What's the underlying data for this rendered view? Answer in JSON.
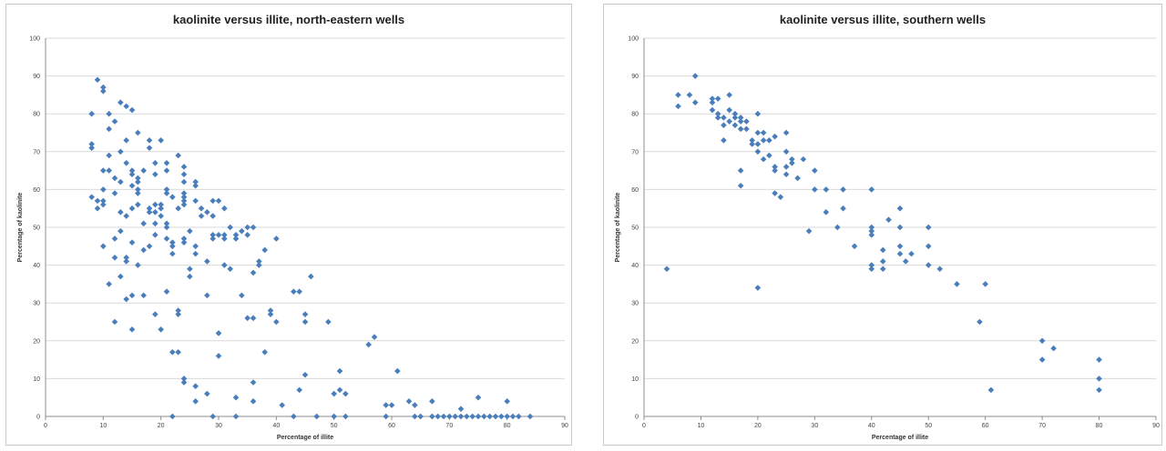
{
  "colors": {
    "marker": "#4a7ebb",
    "grid": "#d9d9d9",
    "axis": "#8c8c8c"
  },
  "chart_data": [
    {
      "type": "scatter",
      "title": "kaolinite versus illite, north-eastern wells",
      "xlabel": "Percentage of illite",
      "ylabel": "Percentage of kaolinite",
      "xlim": [
        0,
        90
      ],
      "ylim": [
        0,
        100
      ],
      "xticks": [
        0,
        10,
        20,
        30,
        40,
        50,
        60,
        70,
        80,
        90
      ],
      "yticks": [
        0,
        10,
        20,
        30,
        40,
        50,
        60,
        70,
        80,
        90,
        100
      ],
      "grid": "horizontal",
      "legend": "none",
      "points": [
        [
          8,
          80
        ],
        [
          8,
          72
        ],
        [
          8,
          71
        ],
        [
          8,
          58
        ],
        [
          9,
          89
        ],
        [
          9,
          57
        ],
        [
          9,
          55
        ],
        [
          10,
          87
        ],
        [
          10,
          86
        ],
        [
          10,
          65
        ],
        [
          10,
          60
        ],
        [
          10,
          57
        ],
        [
          10,
          56
        ],
        [
          10,
          45
        ],
        [
          11,
          80
        ],
        [
          11,
          76
        ],
        [
          11,
          69
        ],
        [
          11,
          65
        ],
        [
          11,
          35
        ],
        [
          12,
          78
        ],
        [
          12,
          63
        ],
        [
          12,
          59
        ],
        [
          12,
          47
        ],
        [
          12,
          42
        ],
        [
          12,
          25
        ],
        [
          13,
          83
        ],
        [
          13,
          70
        ],
        [
          13,
          62
        ],
        [
          13,
          54
        ],
        [
          13,
          49
        ],
        [
          13,
          37
        ],
        [
          14,
          82
        ],
        [
          14,
          73
        ],
        [
          14,
          67
        ],
        [
          14,
          53
        ],
        [
          14,
          42
        ],
        [
          14,
          41
        ],
        [
          14,
          31
        ],
        [
          15,
          81
        ],
        [
          15,
          65
        ],
        [
          15,
          64
        ],
        [
          15,
          61
        ],
        [
          15,
          55
        ],
        [
          15,
          46
        ],
        [
          15,
          32
        ],
        [
          15,
          23
        ],
        [
          16,
          75
        ],
        [
          16,
          63
        ],
        [
          16,
          62
        ],
        [
          16,
          60
        ],
        [
          16,
          59
        ],
        [
          16,
          56
        ],
        [
          16,
          40
        ],
        [
          17,
          65
        ],
        [
          17,
          51
        ],
        [
          17,
          44
        ],
        [
          17,
          32
        ],
        [
          18,
          73
        ],
        [
          18,
          71
        ],
        [
          18,
          55
        ],
        [
          18,
          54
        ],
        [
          18,
          45
        ],
        [
          19,
          67
        ],
        [
          19,
          64
        ],
        [
          19,
          56
        ],
        [
          19,
          54
        ],
        [
          19,
          51
        ],
        [
          19,
          48
        ],
        [
          19,
          27
        ],
        [
          20,
          73
        ],
        [
          20,
          56
        ],
        [
          20,
          55
        ],
        [
          20,
          53
        ],
        [
          20,
          23
        ],
        [
          21,
          67
        ],
        [
          21,
          65
        ],
        [
          21,
          60
        ],
        [
          21,
          59
        ],
        [
          21,
          51
        ],
        [
          21,
          50
        ],
        [
          21,
          47
        ],
        [
          21,
          33
        ],
        [
          22,
          58
        ],
        [
          22,
          46
        ],
        [
          22,
          45
        ],
        [
          22,
          43
        ],
        [
          22,
          17
        ],
        [
          22,
          0
        ],
        [
          23,
          69
        ],
        [
          23,
          55
        ],
        [
          23,
          28
        ],
        [
          23,
          27
        ],
        [
          23,
          17
        ],
        [
          24,
          66
        ],
        [
          24,
          64
        ],
        [
          24,
          62
        ],
        [
          24,
          59
        ],
        [
          24,
          58
        ],
        [
          24,
          57
        ],
        [
          24,
          56
        ],
        [
          24,
          47
        ],
        [
          24,
          46
        ],
        [
          24,
          10
        ],
        [
          24,
          9
        ],
        [
          25,
          49
        ],
        [
          25,
          39
        ],
        [
          25,
          37
        ],
        [
          26,
          62
        ],
        [
          26,
          61
        ],
        [
          26,
          57
        ],
        [
          26,
          45
        ],
        [
          26,
          43
        ],
        [
          26,
          8
        ],
        [
          26,
          4
        ],
        [
          27,
          55
        ],
        [
          27,
          53
        ],
        [
          28,
          54
        ],
        [
          28,
          41
        ],
        [
          28,
          32
        ],
        [
          28,
          6
        ],
        [
          29,
          57
        ],
        [
          29,
          53
        ],
        [
          29,
          48
        ],
        [
          29,
          47
        ],
        [
          29,
          0
        ],
        [
          30,
          57
        ],
        [
          30,
          48
        ],
        [
          30,
          22
        ],
        [
          30,
          16
        ],
        [
          31,
          55
        ],
        [
          31,
          48
        ],
        [
          31,
          47
        ],
        [
          31,
          40
        ],
        [
          32,
          50
        ],
        [
          32,
          39
        ],
        [
          33,
          48
        ],
        [
          33,
          47
        ],
        [
          33,
          5
        ],
        [
          33,
          0
        ],
        [
          34,
          49
        ],
        [
          34,
          32
        ],
        [
          35,
          50
        ],
        [
          35,
          48
        ],
        [
          35,
          26
        ],
        [
          36,
          50
        ],
        [
          36,
          38
        ],
        [
          36,
          26
        ],
        [
          36,
          9
        ],
        [
          36,
          4
        ],
        [
          37,
          41
        ],
        [
          37,
          40
        ],
        [
          38,
          44
        ],
        [
          38,
          17
        ],
        [
          39,
          28
        ],
        [
          39,
          27
        ],
        [
          40,
          47
        ],
        [
          40,
          25
        ],
        [
          41,
          3
        ],
        [
          43,
          33
        ],
        [
          43,
          0
        ],
        [
          44,
          33
        ],
        [
          44,
          7
        ],
        [
          45,
          27
        ],
        [
          45,
          25
        ],
        [
          45,
          11
        ],
        [
          46,
          37
        ],
        [
          47,
          0
        ],
        [
          49,
          25
        ],
        [
          50,
          6
        ],
        [
          50,
          0
        ],
        [
          51,
          12
        ],
        [
          51,
          7
        ],
        [
          52,
          6
        ],
        [
          52,
          0
        ],
        [
          56,
          19
        ],
        [
          57,
          21
        ],
        [
          59,
          3
        ],
        [
          59,
          0
        ],
        [
          60,
          3
        ],
        [
          61,
          12
        ],
        [
          63,
          4
        ],
        [
          64,
          3
        ],
        [
          64,
          0
        ],
        [
          65,
          0
        ],
        [
          67,
          4
        ],
        [
          67,
          0
        ],
        [
          68,
          0
        ],
        [
          69,
          0
        ],
        [
          70,
          0
        ],
        [
          71,
          0
        ],
        [
          72,
          2
        ],
        [
          72,
          0
        ],
        [
          73,
          0
        ],
        [
          74,
          0
        ],
        [
          75,
          5
        ],
        [
          75,
          0
        ],
        [
          76,
          0
        ],
        [
          77,
          0
        ],
        [
          78,
          0
        ],
        [
          79,
          0
        ],
        [
          80,
          4
        ],
        [
          80,
          0
        ],
        [
          81,
          0
        ],
        [
          82,
          0
        ],
        [
          84,
          0
        ]
      ]
    },
    {
      "type": "scatter",
      "title": "kaolinite versus illite, southern wells",
      "xlabel": "Percentage of illite",
      "ylabel": "Percentage of kaolinite",
      "xlim": [
        0,
        90
      ],
      "ylim": [
        0,
        100
      ],
      "xticks": [
        0,
        10,
        20,
        30,
        40,
        50,
        60,
        70,
        80,
        90
      ],
      "yticks": [
        0,
        10,
        20,
        30,
        40,
        50,
        60,
        70,
        80,
        90,
        100
      ],
      "grid": "horizontal",
      "legend": "none",
      "points": [
        [
          4,
          39
        ],
        [
          6,
          85
        ],
        [
          6,
          82
        ],
        [
          8,
          85
        ],
        [
          9,
          90
        ],
        [
          9,
          83
        ],
        [
          12,
          84
        ],
        [
          12,
          83
        ],
        [
          12,
          81
        ],
        [
          13,
          84
        ],
        [
          13,
          80
        ],
        [
          13,
          79
        ],
        [
          14,
          79
        ],
        [
          14,
          77
        ],
        [
          14,
          73
        ],
        [
          15,
          85
        ],
        [
          15,
          81
        ],
        [
          15,
          78
        ],
        [
          16,
          80
        ],
        [
          16,
          79
        ],
        [
          16,
          77
        ],
        [
          17,
          79
        ],
        [
          17,
          78
        ],
        [
          17,
          76
        ],
        [
          17,
          65
        ],
        [
          17,
          61
        ],
        [
          18,
          78
        ],
        [
          18,
          76
        ],
        [
          19,
          73
        ],
        [
          19,
          72
        ],
        [
          20,
          80
        ],
        [
          20,
          75
        ],
        [
          20,
          72
        ],
        [
          20,
          70
        ],
        [
          20,
          34
        ],
        [
          21,
          75
        ],
        [
          21,
          73
        ],
        [
          21,
          68
        ],
        [
          22,
          73
        ],
        [
          22,
          69
        ],
        [
          23,
          74
        ],
        [
          23,
          66
        ],
        [
          23,
          65
        ],
        [
          23,
          59
        ],
        [
          24,
          58
        ],
        [
          25,
          75
        ],
        [
          25,
          70
        ],
        [
          25,
          66
        ],
        [
          25,
          64
        ],
        [
          26,
          68
        ],
        [
          26,
          67
        ],
        [
          27,
          63
        ],
        [
          28,
          68
        ],
        [
          29,
          49
        ],
        [
          30,
          65
        ],
        [
          30,
          60
        ],
        [
          32,
          60
        ],
        [
          32,
          54
        ],
        [
          34,
          50
        ],
        [
          35,
          60
        ],
        [
          35,
          55
        ],
        [
          37,
          45
        ],
        [
          40,
          60
        ],
        [
          40,
          50
        ],
        [
          40,
          49
        ],
        [
          40,
          48
        ],
        [
          40,
          40
        ],
        [
          40,
          39
        ],
        [
          42,
          44
        ],
        [
          42,
          41
        ],
        [
          42,
          39
        ],
        [
          43,
          52
        ],
        [
          45,
          55
        ],
        [
          45,
          50
        ],
        [
          45,
          45
        ],
        [
          45,
          43
        ],
        [
          46,
          41
        ],
        [
          47,
          43
        ],
        [
          50,
          50
        ],
        [
          50,
          45
        ],
        [
          50,
          40
        ],
        [
          52,
          39
        ],
        [
          55,
          35
        ],
        [
          59,
          25
        ],
        [
          60,
          35
        ],
        [
          61,
          7
        ],
        [
          70,
          20
        ],
        [
          70,
          15
        ],
        [
          72,
          18
        ],
        [
          80,
          15
        ],
        [
          80,
          10
        ],
        [
          80,
          7
        ]
      ]
    }
  ]
}
